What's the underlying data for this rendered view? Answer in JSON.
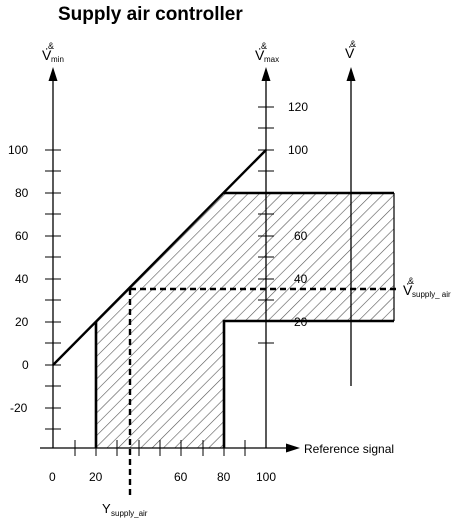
{
  "title": "Supply air controller",
  "axes": {
    "v_min": {
      "symbol": "V̇",
      "sub": "min"
    },
    "v_max": {
      "symbol": "V̇",
      "sub": "max"
    },
    "v": {
      "symbol": "V̇"
    },
    "v_supply_air": {
      "symbol": "V̇",
      "sub": "supply_ air"
    },
    "reference_signal": "Reference signal",
    "y_supply_air": {
      "symbol": "Y",
      "sub": "supply_air"
    }
  },
  "left_axis_labels": [
    "100",
    "80",
    "60",
    "40",
    "20",
    "0",
    "-20"
  ],
  "mid_axis_labels": [
    "120",
    "100",
    "60",
    "40",
    "20"
  ],
  "x_axis_labels": [
    "0",
    "20",
    "60",
    "80",
    "100"
  ],
  "dot_glyph": "&",
  "colors": {
    "line": "#000000",
    "hatch": "#555555",
    "background": "#ffffff"
  }
}
